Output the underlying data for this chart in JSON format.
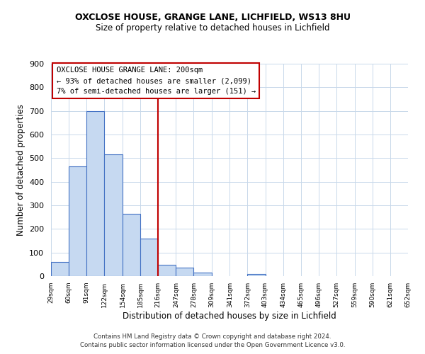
{
  "title1": "OXCLOSE HOUSE, GRANGE LANE, LICHFIELD, WS13 8HU",
  "title2": "Size of property relative to detached houses in Lichfield",
  "xlabel": "Distribution of detached houses by size in Lichfield",
  "ylabel": "Number of detached properties",
  "bar_edges": [
    29,
    60,
    91,
    122,
    154,
    185,
    216,
    247,
    278,
    309,
    341,
    372,
    403,
    434,
    465,
    496,
    527,
    559,
    590,
    621,
    652
  ],
  "bar_heights": [
    60,
    465,
    700,
    515,
    265,
    160,
    47,
    35,
    14,
    0,
    0,
    8,
    0,
    0,
    0,
    0,
    0,
    0,
    0,
    0
  ],
  "bar_color": "#c6d9f1",
  "bar_edgecolor": "#4472c4",
  "tick_labels": [
    "29sqm",
    "60sqm",
    "91sqm",
    "122sqm",
    "154sqm",
    "185sqm",
    "216sqm",
    "247sqm",
    "278sqm",
    "309sqm",
    "341sqm",
    "372sqm",
    "403sqm",
    "434sqm",
    "465sqm",
    "496sqm",
    "527sqm",
    "559sqm",
    "590sqm",
    "621sqm",
    "652sqm"
  ],
  "vline_x": 216,
  "vline_color": "#c00000",
  "annotation_line1": "OXCLOSE HOUSE GRANGE LANE: 200sqm",
  "annotation_line2": "← 93% of detached houses are smaller (2,099)",
  "annotation_line3": "7% of semi-detached houses are larger (151) →",
  "ylim": [
    0,
    900
  ],
  "yticks": [
    0,
    100,
    200,
    300,
    400,
    500,
    600,
    700,
    800,
    900
  ],
  "footer_line1": "Contains HM Land Registry data © Crown copyright and database right 2024.",
  "footer_line2": "Contains public sector information licensed under the Open Government Licence v3.0.",
  "background_color": "#ffffff",
  "grid_color": "#c8d8ea"
}
